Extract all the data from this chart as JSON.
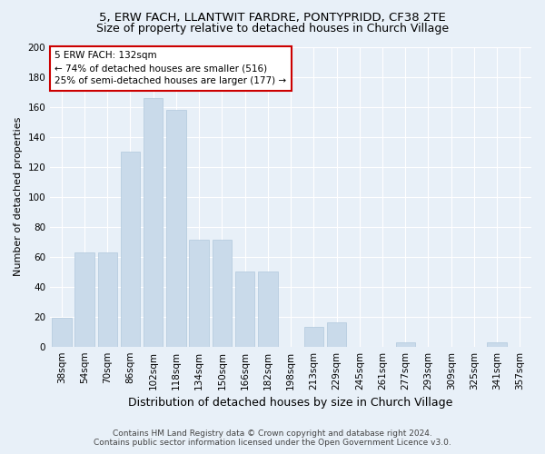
{
  "title": "5, ERW FACH, LLANTWIT FARDRE, PONTYPRIDD, CF38 2TE",
  "subtitle": "Size of property relative to detached houses in Church Village",
  "xlabel": "Distribution of detached houses by size in Church Village",
  "ylabel": "Number of detached properties",
  "categories": [
    "38sqm",
    "54sqm",
    "70sqm",
    "86sqm",
    "102sqm",
    "118sqm",
    "134sqm",
    "150sqm",
    "166sqm",
    "182sqm",
    "198sqm",
    "213sqm",
    "229sqm",
    "245sqm",
    "261sqm",
    "277sqm",
    "293sqm",
    "309sqm",
    "325sqm",
    "341sqm",
    "357sqm"
  ],
  "values": [
    19,
    63,
    63,
    130,
    166,
    158,
    71,
    71,
    50,
    50,
    0,
    13,
    16,
    0,
    0,
    3,
    0,
    0,
    0,
    3,
    0
  ],
  "bar_color": "#c9daea",
  "bar_edge_color": "#b0c8dc",
  "annotation_text": "5 ERW FACH: 132sqm\n← 74% of detached houses are smaller (516)\n25% of semi-detached houses are larger (177) →",
  "annotation_box_facecolor": "#ffffff",
  "annotation_box_edgecolor": "#cc0000",
  "background_color": "#e8f0f8",
  "plot_bg_color": "#e8f0f8",
  "ylim": [
    0,
    200
  ],
  "yticks": [
    0,
    20,
    40,
    60,
    80,
    100,
    120,
    140,
    160,
    180,
    200
  ],
  "footer_line1": "Contains HM Land Registry data © Crown copyright and database right 2024.",
  "footer_line2": "Contains public sector information licensed under the Open Government Licence v3.0.",
  "title_fontsize": 9.5,
  "subtitle_fontsize": 9,
  "xlabel_fontsize": 9,
  "ylabel_fontsize": 8,
  "tick_fontsize": 7.5,
  "annotation_fontsize": 7.5,
  "footer_fontsize": 6.5
}
